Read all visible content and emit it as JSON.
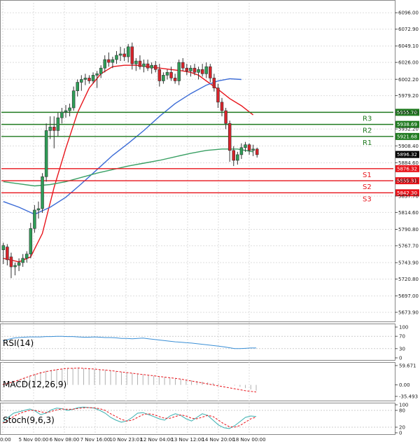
{
  "chart_data": {
    "type": "candlestick",
    "price_axis": {
      "ticks": [
        "6096.00",
        "6072.90",
        "6049.10",
        "6026.00",
        "6002.20",
        "5979.20",
        "5955.70",
        "5932.20",
        "5908.40",
        "5884.60",
        "5859.31",
        "5837.70",
        "5814.60",
        "5790.80",
        "5767.70",
        "5743.90",
        "5720.80",
        "5697.00",
        "5673.90"
      ],
      "ylim": [
        5665,
        6110
      ]
    },
    "time_axis": {
      "labels": [
        "0:00",
        "5 Nov 00:00",
        "6 Nov 08:00",
        "7 Nov 16:00",
        "10 Nov 23:01",
        "12 Nov 04:00",
        "13 Nov 12:00",
        "14 Nov 20:00",
        "18 Nov 00:00"
      ]
    },
    "candles": [
      {
        "o": 5762,
        "h": 5772,
        "l": 5742,
        "c": 5768
      },
      {
        "o": 5766,
        "h": 5770,
        "l": 5740,
        "c": 5748
      },
      {
        "o": 5752,
        "h": 5758,
        "l": 5722,
        "c": 5738
      },
      {
        "o": 5738,
        "h": 5744,
        "l": 5726,
        "c": 5740
      },
      {
        "o": 5740,
        "h": 5750,
        "l": 5732,
        "c": 5744
      },
      {
        "o": 5744,
        "h": 5756,
        "l": 5738,
        "c": 5750
      },
      {
        "o": 5750,
        "h": 5760,
        "l": 5744,
        "c": 5756
      },
      {
        "o": 5756,
        "h": 5800,
        "l": 5750,
        "c": 5792
      },
      {
        "o": 5792,
        "h": 5825,
        "l": 5786,
        "c": 5818
      },
      {
        "o": 5818,
        "h": 5830,
        "l": 5806,
        "c": 5820
      },
      {
        "o": 5820,
        "h": 5870,
        "l": 5814,
        "c": 5865
      },
      {
        "o": 5865,
        "h": 5940,
        "l": 5858,
        "c": 5930
      },
      {
        "o": 5930,
        "h": 5950,
        "l": 5918,
        "c": 5935
      },
      {
        "o": 5935,
        "h": 5950,
        "l": 5905,
        "c": 5930
      },
      {
        "o": 5930,
        "h": 5955,
        "l": 5922,
        "c": 5948
      },
      {
        "o": 5948,
        "h": 5962,
        "l": 5940,
        "c": 5956
      },
      {
        "o": 5956,
        "h": 5966,
        "l": 5948,
        "c": 5958
      },
      {
        "o": 5958,
        "h": 5968,
        "l": 5950,
        "c": 5962
      },
      {
        "o": 5962,
        "h": 5992,
        "l": 5958,
        "c": 5986
      },
      {
        "o": 5986,
        "h": 6002,
        "l": 5978,
        "c": 5998
      },
      {
        "o": 5998,
        "h": 6008,
        "l": 5986,
        "c": 6002
      },
      {
        "o": 6002,
        "h": 6010,
        "l": 5994,
        "c": 6004
      },
      {
        "o": 6004,
        "h": 6008,
        "l": 5996,
        "c": 6000
      },
      {
        "o": 6000,
        "h": 6012,
        "l": 5996,
        "c": 6008
      },
      {
        "o": 6008,
        "h": 6014,
        "l": 5990,
        "c": 6010
      },
      {
        "o": 6010,
        "h": 6022,
        "l": 6004,
        "c": 6018
      },
      {
        "o": 6018,
        "h": 6036,
        "l": 6012,
        "c": 6030
      },
      {
        "o": 6030,
        "h": 6040,
        "l": 6020,
        "c": 6026
      },
      {
        "o": 6026,
        "h": 6034,
        "l": 6018,
        "c": 6030
      },
      {
        "o": 6030,
        "h": 6042,
        "l": 6024,
        "c": 6036
      },
      {
        "o": 6036,
        "h": 6048,
        "l": 6028,
        "c": 6038
      },
      {
        "o": 6038,
        "h": 6046,
        "l": 6028,
        "c": 6034
      },
      {
        "o": 6034,
        "h": 6052,
        "l": 6026,
        "c": 6048
      },
      {
        "o": 6048,
        "h": 6054,
        "l": 6016,
        "c": 6024
      },
      {
        "o": 6024,
        "h": 6032,
        "l": 6014,
        "c": 6028
      },
      {
        "o": 6028,
        "h": 6036,
        "l": 6016,
        "c": 6020
      },
      {
        "o": 6020,
        "h": 6030,
        "l": 6012,
        "c": 6024
      },
      {
        "o": 6024,
        "h": 6030,
        "l": 6014,
        "c": 6018
      },
      {
        "o": 6018,
        "h": 6026,
        "l": 6010,
        "c": 6022
      },
      {
        "o": 6022,
        "h": 6028,
        "l": 6012,
        "c": 6016
      },
      {
        "o": 6016,
        "h": 6024,
        "l": 5992,
        "c": 6000
      },
      {
        "o": 6000,
        "h": 6012,
        "l": 5996,
        "c": 6008
      },
      {
        "o": 6008,
        "h": 6016,
        "l": 6002,
        "c": 6012
      },
      {
        "o": 6012,
        "h": 6020,
        "l": 6000,
        "c": 6004
      },
      {
        "o": 6004,
        "h": 6010,
        "l": 5996,
        "c": 6000
      },
      {
        "o": 6000,
        "h": 6030,
        "l": 5994,
        "c": 6026
      },
      {
        "o": 6026,
        "h": 6032,
        "l": 6014,
        "c": 6018
      },
      {
        "o": 6018,
        "h": 6024,
        "l": 6008,
        "c": 6014
      },
      {
        "o": 6014,
        "h": 6022,
        "l": 6006,
        "c": 6018
      },
      {
        "o": 6018,
        "h": 6024,
        "l": 6008,
        "c": 6012
      },
      {
        "o": 6012,
        "h": 6020,
        "l": 6002,
        "c": 6016
      },
      {
        "o": 6016,
        "h": 6024,
        "l": 6006,
        "c": 6010
      },
      {
        "o": 6010,
        "h": 6026,
        "l": 6004,
        "c": 6020
      },
      {
        "o": 6020,
        "h": 6024,
        "l": 5998,
        "c": 6004
      },
      {
        "o": 6004,
        "h": 6010,
        "l": 5985,
        "c": 5990
      },
      {
        "o": 5990,
        "h": 5996,
        "l": 5962,
        "c": 5970
      },
      {
        "o": 5970,
        "h": 5976,
        "l": 5950,
        "c": 5958
      },
      {
        "o": 5958,
        "h": 5962,
        "l": 5932,
        "c": 5940
      },
      {
        "o": 5940,
        "h": 5944,
        "l": 5886,
        "c": 5902
      },
      {
        "o": 5902,
        "h": 5908,
        "l": 5880,
        "c": 5888
      },
      {
        "o": 5888,
        "h": 5900,
        "l": 5882,
        "c": 5896
      },
      {
        "o": 5896,
        "h": 5912,
        "l": 5890,
        "c": 5906
      },
      {
        "o": 5906,
        "h": 5914,
        "l": 5900,
        "c": 5910
      },
      {
        "o": 5910,
        "h": 5912,
        "l": 5896,
        "c": 5902
      },
      {
        "o": 5902,
        "h": 5910,
        "l": 5894,
        "c": 5904
      },
      {
        "o": 5904,
        "h": 5906,
        "l": 5892,
        "c": 5896
      }
    ],
    "indicator_lines": [
      {
        "name": "",
        "color": "#e8141b",
        "values": [
          [
            0,
            5750
          ],
          [
            4,
            5745
          ],
          [
            7,
            5752
          ],
          [
            10,
            5785
          ],
          [
            13,
            5850
          ],
          [
            16,
            5905
          ],
          [
            19,
            5955
          ],
          [
            22,
            5990
          ],
          [
            25,
            6010
          ],
          [
            28,
            6020
          ],
          [
            31,
            6022
          ],
          [
            34,
            6022
          ],
          [
            37,
            6020
          ],
          [
            40,
            6018
          ],
          [
            43,
            6016
          ],
          [
            46,
            6014
          ],
          [
            48,
            6012
          ],
          [
            50,
            6008
          ],
          [
            52,
            6000
          ],
          [
            55,
            5988
          ],
          [
            58,
            5975
          ],
          [
            61,
            5965
          ],
          [
            64,
            5952
          ]
        ]
      },
      {
        "name": "",
        "color": "#3b6bd6",
        "values": [
          [
            0,
            5830
          ],
          [
            4,
            5822
          ],
          [
            8,
            5812
          ],
          [
            12,
            5822
          ],
          [
            16,
            5836
          ],
          [
            20,
            5855
          ],
          [
            24,
            5875
          ],
          [
            28,
            5895
          ],
          [
            32,
            5912
          ],
          [
            36,
            5930
          ],
          [
            40,
            5950
          ],
          [
            44,
            5968
          ],
          [
            48,
            5982
          ],
          [
            52,
            5994
          ],
          [
            55,
            6000
          ],
          [
            58,
            6003
          ],
          [
            61,
            6002
          ]
        ]
      },
      {
        "name": "",
        "color": "#3aa064",
        "values": [
          [
            0,
            5858
          ],
          [
            4,
            5855
          ],
          [
            8,
            5852
          ],
          [
            12,
            5854
          ],
          [
            16,
            5858
          ],
          [
            20,
            5864
          ],
          [
            24,
            5870
          ],
          [
            28,
            5875
          ],
          [
            32,
            5880
          ],
          [
            36,
            5884
          ],
          [
            40,
            5888
          ],
          [
            44,
            5893
          ],
          [
            48,
            5898
          ],
          [
            52,
            5902
          ],
          [
            56,
            5904
          ],
          [
            60,
            5904
          ],
          [
            62,
            5902
          ],
          [
            64,
            5900
          ]
        ]
      }
    ],
    "levels": [
      {
        "label": "R3",
        "value": 5955.7,
        "tag": "5955.70",
        "color": "#1f7a1f"
      },
      {
        "label": "R2",
        "value": 5938.69,
        "tag": "5938.69",
        "color": "#1f7a1f"
      },
      {
        "label": "R1",
        "value": 5921.68,
        "tag": "5921.68",
        "color": "#1f7a1f"
      },
      {
        "label": "S1",
        "value": 5876.32,
        "tag": "5876.32",
        "color": "#e8141b"
      },
      {
        "label": "S2",
        "value": 5859.31,
        "tag": "5859.31",
        "color": "#e8141b"
      },
      {
        "label": "S3",
        "value": 5842.3,
        "tag": "5842.30",
        "color": "#e8141b"
      }
    ],
    "current_price": {
      "value": 5896.32,
      "tag": "5896.32"
    },
    "indicators": {
      "rsi": {
        "label": "RSI(14)",
        "ticks": [
          "100",
          "70",
          "30",
          "0"
        ],
        "ylim": [
          0,
          100
        ],
        "values": [
          55,
          60,
          64,
          66,
          67,
          68,
          68,
          68,
          69,
          69,
          70,
          70,
          69,
          69,
          68,
          67,
          67,
          68,
          67,
          66,
          66,
          65,
          63,
          63,
          62,
          63,
          64,
          62,
          60,
          58,
          56,
          54,
          52,
          51,
          49,
          48,
          46,
          44,
          42,
          40,
          38,
          36,
          33,
          30,
          30,
          31,
          32,
          32
        ]
      },
      "macd": {
        "label": "MACD(12,26,9)",
        "ticks": [
          "59.671",
          "0.00",
          "-35.493"
        ],
        "ylim": [
          -35.493,
          59.671
        ],
        "histogram": [
          2,
          6,
          10,
          16,
          22,
          28,
          34,
          40,
          44,
          46,
          48,
          50,
          51,
          52,
          52,
          51,
          50,
          49,
          48,
          46,
          44,
          42,
          40,
          38,
          36,
          34,
          32,
          30,
          28,
          26,
          24,
          22,
          20,
          18,
          16,
          14,
          12,
          10,
          8,
          6,
          4,
          2,
          0,
          -2,
          -6,
          -10,
          -14,
          -18
        ],
        "signal": [
          1,
          5,
          10,
          15,
          21,
          27,
          32,
          37,
          41,
          44,
          47,
          49,
          51,
          51,
          52,
          51,
          50,
          49,
          47,
          46,
          44,
          42,
          40,
          38,
          36,
          34,
          32,
          30,
          28,
          26,
          24,
          22,
          20,
          18,
          15,
          12,
          9,
          6,
          3,
          0,
          -3,
          -6,
          -9,
          -12,
          -15,
          -18,
          -20,
          -22
        ]
      },
      "stoch": {
        "label": "Stoch(9,6,3)",
        "ticks": [
          "100",
          "80",
          "20",
          "0"
        ],
        "ylim": [
          0,
          100
        ],
        "k": [
          40,
          55,
          70,
          75,
          80,
          85,
          78,
          65,
          70,
          82,
          88,
          86,
          80,
          84,
          90,
          92,
          90,
          88,
          80,
          70,
          55,
          45,
          38,
          42,
          55,
          70,
          72,
          65,
          58,
          50,
          45,
          60,
          68,
          62,
          50,
          42,
          55,
          68,
          62,
          45,
          28,
          18,
          15,
          25,
          40,
          55,
          60,
          58
        ],
        "d": [
          35,
          45,
          58,
          68,
          75,
          80,
          80,
          75,
          72,
          76,
          82,
          85,
          84,
          84,
          87,
          89,
          90,
          89,
          86,
          80,
          68,
          58,
          48,
          42,
          45,
          55,
          65,
          68,
          65,
          58,
          52,
          52,
          58,
          64,
          60,
          52,
          50,
          56,
          62,
          58,
          45,
          32,
          22,
          20,
          26,
          38,
          50,
          56
        ]
      }
    }
  }
}
